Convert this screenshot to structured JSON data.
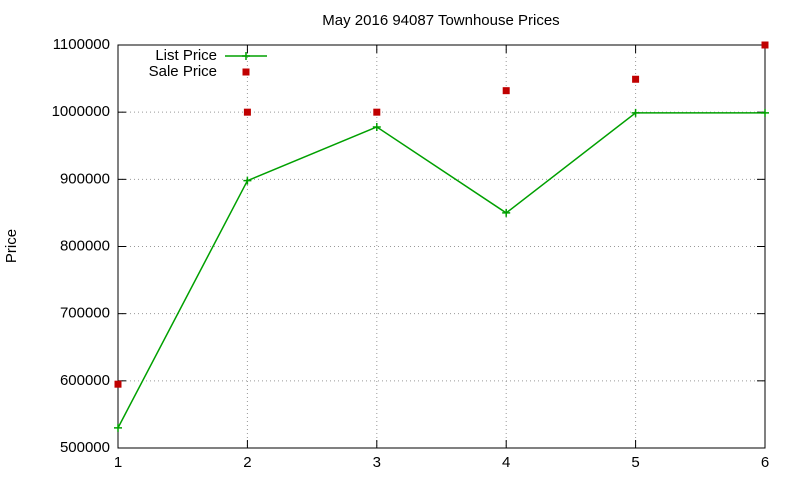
{
  "chart_data": {
    "type": "line",
    "title": "May 2016 94087 Townhouse Prices",
    "y_label": "Price",
    "x": [
      1,
      2,
      3,
      4,
      5,
      6
    ],
    "xlim": [
      1,
      6
    ],
    "xticks": [
      1,
      2,
      3,
      4,
      5,
      6
    ],
    "ylim": [
      500000,
      1100000
    ],
    "yticks": [
      500000,
      600000,
      700000,
      800000,
      900000,
      1000000,
      1100000
    ],
    "grid": true,
    "legend": "top-left",
    "series": [
      {
        "name": "List Price",
        "color": "#00a000",
        "marker": "plus",
        "line": true,
        "values": [
          530000,
          898000,
          978000,
          850000,
          999000,
          999000
        ]
      },
      {
        "name": "Sale Price",
        "color": "#c00000",
        "marker": "square",
        "line": false,
        "values": [
          595000,
          1000000,
          1000000,
          1032000,
          1049000,
          1100000
        ]
      }
    ]
  }
}
